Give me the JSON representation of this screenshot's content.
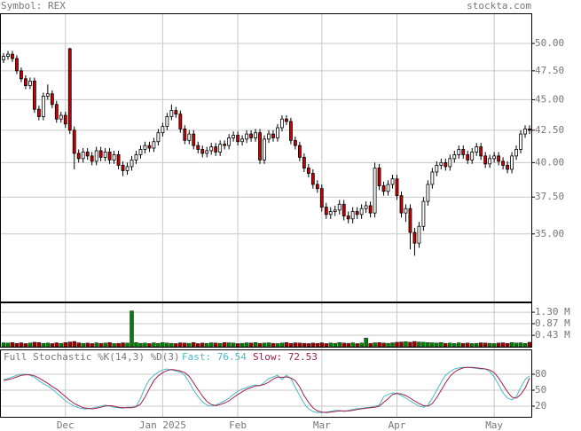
{
  "header": {
    "symbol": "Symbol: REX",
    "site": "stockta.com"
  },
  "chart_data": [
    {
      "type": "candlestick",
      "log": true,
      "grid": true,
      "up_color": "#ffffff",
      "down_color": "#cc0000",
      "ylim": [
        30.84,
        52.9
      ],
      "yticks": [
        {
          "value": 35,
          "label": "35.00"
        },
        {
          "value": 37.5,
          "label": "37.50"
        },
        {
          "value": 40,
          "label": "40.00"
        },
        {
          "value": 42.5,
          "label": "42.50"
        },
        {
          "value": 45,
          "label": "45.00"
        },
        {
          "value": 47.5,
          "label": "47.50"
        },
        {
          "value": 50,
          "label": "50.00"
        }
      ],
      "categories": [
        null,
        null,
        null,
        null,
        null,
        null,
        null,
        null,
        null,
        null,
        null,
        null,
        null,
        null,
        "Dec",
        null,
        null,
        null,
        null,
        null,
        null,
        null,
        null,
        null,
        null,
        null,
        null,
        null,
        null,
        null,
        null,
        null,
        null,
        null,
        null,
        null,
        "Jan 2025",
        null,
        null,
        null,
        null,
        null,
        null,
        null,
        null,
        null,
        null,
        null,
        null,
        null,
        null,
        null,
        null,
        "Feb",
        null,
        null,
        null,
        null,
        null,
        null,
        null,
        null,
        null,
        null,
        null,
        null,
        null,
        null,
        null,
        null,
        null,
        null,
        "Mar",
        null,
        null,
        null,
        null,
        null,
        null,
        null,
        null,
        null,
        null,
        null,
        null,
        null,
        null,
        null,
        null,
        "Apr",
        null,
        null,
        null,
        null,
        null,
        null,
        null,
        null,
        null,
        null,
        null,
        null,
        null,
        null,
        null,
        null,
        null,
        null,
        null,
        null,
        null,
        "May",
        null,
        null,
        null,
        null,
        null,
        null,
        null,
        null
      ],
      "open": [
        48.5,
        48.8,
        49.0,
        48.6,
        47.5,
        46.8,
        46.2,
        46.6,
        44.2,
        43.6,
        45.3,
        45.5,
        44.6,
        43.4,
        43.7,
        49.5,
        42.5,
        40.7,
        40.3,
        40.8,
        40.5,
        40.1,
        40.9,
        40.4,
        40.8,
        40.2,
        40.6,
        39.8,
        39.4,
        39.7,
        40.2,
        40.6,
        41.0,
        41.3,
        41.1,
        41.6,
        42.3,
        42.8,
        43.6,
        44.1,
        43.8,
        42.6,
        41.7,
        42.2,
        41.3,
        41.0,
        40.7,
        40.9,
        41.2,
        40.8,
        41.4,
        41.3,
        41.9,
        42.1,
        41.6,
        41.8,
        42.2,
        41.9,
        42.3,
        40.2,
        41.8,
        42.2,
        41.9,
        42.7,
        43.4,
        43.2,
        41.7,
        41.3,
        40.4,
        39.6,
        39.2,
        38.4,
        38.1,
        36.8,
        36.3,
        36.5,
        36.6,
        37.0,
        36.2,
        36.0,
        36.5,
        36.3,
        36.7,
        36.9,
        36.4,
        39.6,
        38.3,
        37.9,
        38.4,
        38.8,
        37.6,
        36.4,
        36.7,
        35.1,
        34.4,
        35.5,
        37.2,
        38.4,
        39.3,
        39.8,
        40.0,
        39.7,
        40.3,
        40.6,
        41.0,
        40.6,
        40.2,
        40.8,
        41.2,
        40.5,
        39.9,
        40.3,
        40.5,
        40.1,
        39.8,
        39.5,
        40.5,
        41.0,
        42.2,
        42.6
      ],
      "high": [
        49.1,
        49.3,
        49.3,
        48.9,
        47.8,
        47.1,
        46.9,
        46.9,
        44.5,
        45.6,
        46.3,
        45.8,
        44.9,
        44.0,
        44.0,
        49.6,
        42.8,
        41.0,
        41.1,
        41.1,
        40.8,
        41.2,
        41.2,
        41.1,
        41.1,
        40.9,
        40.9,
        40.1,
        40.0,
        40.5,
        40.9,
        41.3,
        41.6,
        41.6,
        41.9,
        42.6,
        43.1,
        43.9,
        44.6,
        44.4,
        44.1,
        42.9,
        42.5,
        42.5,
        41.6,
        41.3,
        41.2,
        41.5,
        41.5,
        41.7,
        41.7,
        42.2,
        42.4,
        42.4,
        42.1,
        42.5,
        42.5,
        42.6,
        42.6,
        42.1,
        42.5,
        42.5,
        43.0,
        43.7,
        43.7,
        43.5,
        42.0,
        41.6,
        40.7,
        39.9,
        39.5,
        38.7,
        38.4,
        37.1,
        36.8,
        36.9,
        37.3,
        37.3,
        36.5,
        36.8,
        36.8,
        37.0,
        37.2,
        37.2,
        40.0,
        39.9,
        38.6,
        38.7,
        39.1,
        39.1,
        37.9,
        37.0,
        37.0,
        35.4,
        35.8,
        37.5,
        38.7,
        39.6,
        40.1,
        40.3,
        40.3,
        40.6,
        40.9,
        41.3,
        41.3,
        40.9,
        41.1,
        41.5,
        41.5,
        40.8,
        40.6,
        40.8,
        40.8,
        40.4,
        40.1,
        40.8,
        41.3,
        42.5,
        42.9,
        42.9
      ],
      "low": [
        48.2,
        48.5,
        48.3,
        47.2,
        46.5,
        45.9,
        45.9,
        43.9,
        43.3,
        43.3,
        45.0,
        44.3,
        43.1,
        43.1,
        42.7,
        42.2,
        39.5,
        40.0,
        40.0,
        40.2,
        39.8,
        39.8,
        40.1,
        40.1,
        39.9,
        39.9,
        39.5,
        39.0,
        39.1,
        39.4,
        39.9,
        40.3,
        40.7,
        40.8,
        40.8,
        41.3,
        42.0,
        42.5,
        43.3,
        43.5,
        42.3,
        41.4,
        41.4,
        41.0,
        40.7,
        40.4,
        40.4,
        40.6,
        40.5,
        40.5,
        41.0,
        41.0,
        41.6,
        41.3,
        41.3,
        41.5,
        41.6,
        41.6,
        39.9,
        39.9,
        41.5,
        41.6,
        41.6,
        42.4,
        42.9,
        41.4,
        41.0,
        40.1,
        39.3,
        38.9,
        38.1,
        37.8,
        36.5,
        36.0,
        36.0,
        36.2,
        36.3,
        35.9,
        35.7,
        35.7,
        36.0,
        36.0,
        36.4,
        36.1,
        36.1,
        38.0,
        37.6,
        37.6,
        38.1,
        37.3,
        36.1,
        35.8,
        34.0,
        33.6,
        34.1,
        35.2,
        36.9,
        38.1,
        39.0,
        39.5,
        39.4,
        39.4,
        40.0,
        40.3,
        40.3,
        39.9,
        39.9,
        40.5,
        40.2,
        39.6,
        39.6,
        40.0,
        39.8,
        39.5,
        39.2,
        39.2,
        40.2,
        40.7,
        41.9,
        42.2
      ],
      "close": [
        48.8,
        49.0,
        48.6,
        47.5,
        46.8,
        46.2,
        46.6,
        44.2,
        43.6,
        45.3,
        45.5,
        44.6,
        43.4,
        43.7,
        43.0,
        42.5,
        40.7,
        40.3,
        40.8,
        40.5,
        40.1,
        40.9,
        40.4,
        40.8,
        40.2,
        40.6,
        39.8,
        39.4,
        39.7,
        40.2,
        40.6,
        41.0,
        41.3,
        41.1,
        41.6,
        42.3,
        42.8,
        43.6,
        44.1,
        43.8,
        42.6,
        41.7,
        42.2,
        41.3,
        41.0,
        40.7,
        40.9,
        41.2,
        40.8,
        41.4,
        41.3,
        41.9,
        42.1,
        41.6,
        41.8,
        42.2,
        41.9,
        42.3,
        40.2,
        41.8,
        42.2,
        41.9,
        42.7,
        43.4,
        43.2,
        41.7,
        41.3,
        40.4,
        39.6,
        39.2,
        38.4,
        38.1,
        36.8,
        36.3,
        36.5,
        36.6,
        37.0,
        36.2,
        36.0,
        36.5,
        36.3,
        36.7,
        36.9,
        36.4,
        39.6,
        38.3,
        37.9,
        38.4,
        38.8,
        37.6,
        36.4,
        36.7,
        35.1,
        34.4,
        35.5,
        37.2,
        38.4,
        39.3,
        39.8,
        40.0,
        39.7,
        40.3,
        40.6,
        41.0,
        40.6,
        40.2,
        40.8,
        41.2,
        40.5,
        39.9,
        40.3,
        40.5,
        40.1,
        39.8,
        39.5,
        40.5,
        41.0,
        42.2,
        42.6,
        42.5
      ]
    },
    {
      "type": "volume",
      "grid": true,
      "up_color": "#008000",
      "down_color": "#990000",
      "ylim": [
        0,
        1670000
      ],
      "yticks": [
        {
          "value": 430000,
          "label": "0.43 M"
        },
        {
          "value": 870000,
          "label": "0.87 M"
        },
        {
          "value": 1300000,
          "label": "1.30 M"
        }
      ],
      "values": [
        150000,
        140000,
        160000,
        130000,
        150000,
        120000,
        140000,
        170000,
        160000,
        130000,
        140000,
        120000,
        150000,
        130000,
        160000,
        180000,
        200000,
        150000,
        130000,
        140000,
        120000,
        150000,
        130000,
        140000,
        160000,
        120000,
        130000,
        150000,
        140000,
        1350000,
        160000,
        130000,
        140000,
        120000,
        150000,
        130000,
        160000,
        140000,
        130000,
        120000,
        150000,
        140000,
        130000,
        160000,
        120000,
        140000,
        130000,
        150000,
        140000,
        130000,
        160000,
        150000,
        140000,
        120000,
        130000,
        150000,
        140000,
        160000,
        130000,
        140000,
        150000,
        130000,
        120000,
        140000,
        160000,
        130000,
        150000,
        140000,
        130000,
        120000,
        140000,
        130000,
        150000,
        120000,
        140000,
        130000,
        160000,
        140000,
        130000,
        150000,
        120000,
        140000,
        330000,
        130000,
        150000,
        160000,
        140000,
        130000,
        150000,
        170000,
        180000,
        190000,
        170000,
        200000,
        180000,
        170000,
        160000,
        150000,
        140000,
        160000,
        130000,
        140000,
        120000,
        150000,
        130000,
        140000,
        120000,
        130000,
        150000,
        140000,
        130000,
        120000,
        140000,
        150000,
        130000,
        160000,
        140000,
        150000,
        130000,
        170000
      ]
    },
    {
      "type": "line",
      "grid": true,
      "title": "Full Stochastic %K(14,3) %D(3)",
      "ylim": [
        0,
        100
      ],
      "yticks": [
        20,
        50,
        80
      ],
      "series": [
        {
          "name": "Fast: 76.54",
          "color": "#4db8c8",
          "values": [
            70,
            72,
            75,
            78,
            80,
            80,
            78,
            74,
            68,
            62,
            58,
            52,
            45,
            38,
            30,
            25,
            20,
            17,
            15,
            15,
            16,
            18,
            20,
            22,
            20,
            18,
            17,
            16,
            18,
            18,
            20,
            35,
            55,
            70,
            78,
            84,
            88,
            90,
            88,
            86,
            84,
            78,
            65,
            50,
            38,
            28,
            22,
            20,
            22,
            26,
            30,
            35,
            42,
            48,
            52,
            55,
            58,
            60,
            58,
            65,
            72,
            75,
            78,
            70,
            78,
            72,
            55,
            40,
            25,
            15,
            10,
            8,
            8,
            9,
            10,
            12,
            12,
            10,
            12,
            14,
            15,
            16,
            17,
            18,
            20,
            22,
            38,
            42,
            45,
            44,
            40,
            35,
            30,
            25,
            20,
            18,
            22,
            35,
            50,
            65,
            78,
            85,
            90,
            92,
            93,
            93,
            92,
            91,
            90,
            90,
            85,
            75,
            60,
            45,
            35,
            32,
            38,
            55,
            70,
            76.54
          ]
        },
        {
          "name": "Slow: 72.53",
          "color": "#a0204a",
          "values": [
            68,
            70,
            72,
            75,
            78,
            79,
            79,
            77,
            73,
            68,
            63,
            57,
            52,
            45,
            38,
            31,
            25,
            21,
            17,
            16,
            15,
            16,
            18,
            20,
            21,
            20,
            18,
            17,
            17,
            17,
            19,
            24,
            37,
            53,
            68,
            77,
            83,
            87,
            89,
            88,
            86,
            83,
            76,
            64,
            51,
            39,
            29,
            23,
            21,
            23,
            26,
            30,
            36,
            42,
            47,
            52,
            55,
            58,
            59,
            61,
            65,
            71,
            75,
            74,
            75,
            73,
            68,
            56,
            40,
            27,
            17,
            11,
            9,
            8,
            9,
            10,
            11,
            11,
            11,
            12,
            14,
            15,
            16,
            17,
            18,
            20,
            27,
            34,
            42,
            44,
            43,
            40,
            35,
            30,
            25,
            21,
            20,
            25,
            36,
            50,
            64,
            76,
            84,
            89,
            92,
            93,
            93,
            92,
            91,
            90,
            88,
            83,
            73,
            60,
            47,
            37,
            35,
            42,
            54,
            72.53
          ]
        }
      ]
    }
  ]
}
